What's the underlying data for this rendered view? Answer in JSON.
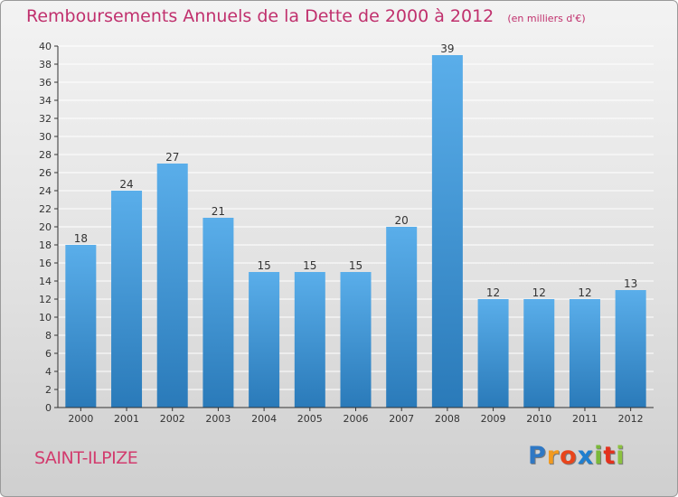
{
  "header": {
    "title": "Remboursements Annuels de la Dette de 2000 à 2012",
    "subtitle": "(en milliers d'€)"
  },
  "footer": {
    "commune": "SAINT-ILPIZE",
    "logo_letters": [
      "P",
      "r",
      "o",
      "x",
      "i",
      "t",
      "i"
    ],
    "logo_colors": [
      "#2f78c4",
      "#f29a1f",
      "#e8451c",
      "#1f7fcf",
      "#7ab83a",
      "#e3311d",
      "#8cc23f"
    ]
  },
  "chart_data": {
    "type": "bar",
    "categories": [
      "2000",
      "2001",
      "2002",
      "2003",
      "2004",
      "2005",
      "2006",
      "2007",
      "2008",
      "2009",
      "2010",
      "2011",
      "2012"
    ],
    "values": [
      18,
      24,
      27,
      21,
      15,
      15,
      15,
      20,
      39,
      12,
      12,
      12,
      13
    ],
    "ylim": [
      0,
      40
    ],
    "yticks": [
      0,
      2,
      4,
      6,
      8,
      10,
      12,
      14,
      16,
      18,
      20,
      22,
      24,
      26,
      28,
      30,
      32,
      34,
      36,
      38,
      40
    ],
    "grid": true,
    "colors": {
      "bar_light": "#5aaeea",
      "bar_dark": "#2a7ab9",
      "grid": "#ffffff",
      "axis": "#333333"
    }
  }
}
